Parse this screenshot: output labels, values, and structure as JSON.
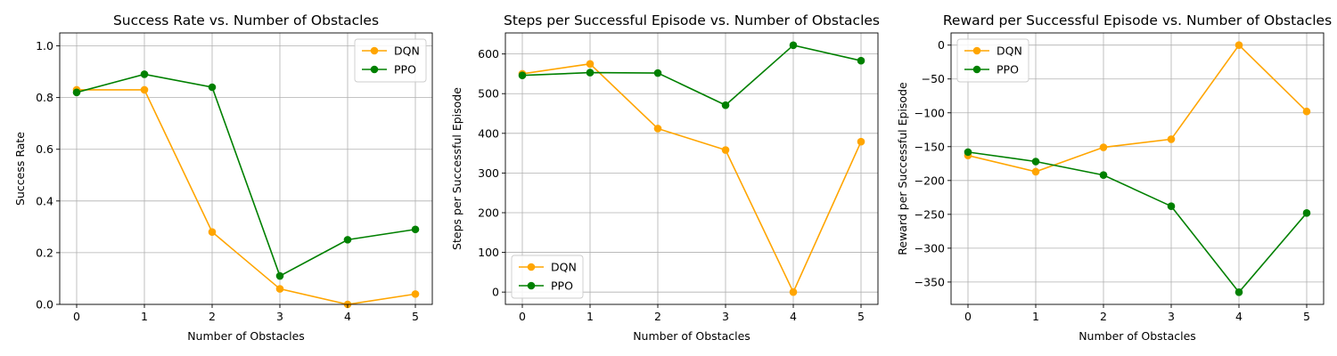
{
  "chart_data": [
    {
      "type": "line",
      "title": "Success Rate vs. Number of Obstacles",
      "xlabel": "Number of Obstacles",
      "ylabel": "Success Rate",
      "x": [
        0,
        1,
        2,
        3,
        4,
        5
      ],
      "xlim": [
        -0.25,
        5.25
      ],
      "ylim": [
        0,
        1.05
      ],
      "yticks": [
        0.0,
        0.2,
        0.4,
        0.6,
        0.8,
        1.0
      ],
      "ytick_labels": [
        "0.0",
        "0.2",
        "0.4",
        "0.6",
        "0.8",
        "1.0"
      ],
      "grid": true,
      "legend": "top-right",
      "series": [
        {
          "name": "DQN",
          "color": "#ffa500",
          "values": [
            0.83,
            0.83,
            0.28,
            0.06,
            0.0,
            0.04
          ]
        },
        {
          "name": "PPO",
          "color": "#008000",
          "values": [
            0.82,
            0.89,
            0.84,
            0.11,
            0.25,
            0.29
          ]
        }
      ]
    },
    {
      "type": "line",
      "title": "Steps per Successful Episode vs. Number of Obstacles",
      "xlabel": "Number of Obstacles",
      "ylabel": "Steps per Successful Episode",
      "x": [
        0,
        1,
        2,
        3,
        4,
        5
      ],
      "xlim": [
        -0.25,
        5.25
      ],
      "ylim": [
        -31,
        653
      ],
      "yticks": [
        0,
        100,
        200,
        300,
        400,
        500,
        600
      ],
      "ytick_labels": [
        "0",
        "100",
        "200",
        "300",
        "400",
        "500",
        "600"
      ],
      "grid": true,
      "legend": "bottom-left",
      "series": [
        {
          "name": "DQN",
          "color": "#ffa500",
          "values": [
            550,
            575,
            412,
            358,
            0,
            379
          ]
        },
        {
          "name": "PPO",
          "color": "#008000",
          "values": [
            546,
            553,
            552,
            471,
            622,
            583
          ]
        }
      ]
    },
    {
      "type": "line",
      "title": "Reward per Successful Episode vs. Number of Obstacles",
      "xlabel": "Number of Obstacles",
      "ylabel": "Reward per Successful Episode",
      "x": [
        0,
        1,
        2,
        3,
        4,
        5
      ],
      "xlim": [
        -0.25,
        5.25
      ],
      "ylim": [
        -383,
        18
      ],
      "yticks": [
        0,
        -50,
        -100,
        -150,
        -200,
        -250,
        -300,
        -350
      ],
      "ytick_labels": [
        "0",
        "−50",
        "−100",
        "−150",
        "−200",
        "−250",
        "−300",
        "−350"
      ],
      "grid": true,
      "legend": "top-left",
      "series": [
        {
          "name": "DQN",
          "color": "#ffa500",
          "values": [
            -163,
            -187,
            -151,
            -139,
            0,
            -98
          ]
        },
        {
          "name": "PPO",
          "color": "#008000",
          "values": [
            -158,
            -172,
            -192,
            -238,
            -365,
            -248
          ]
        }
      ]
    }
  ]
}
